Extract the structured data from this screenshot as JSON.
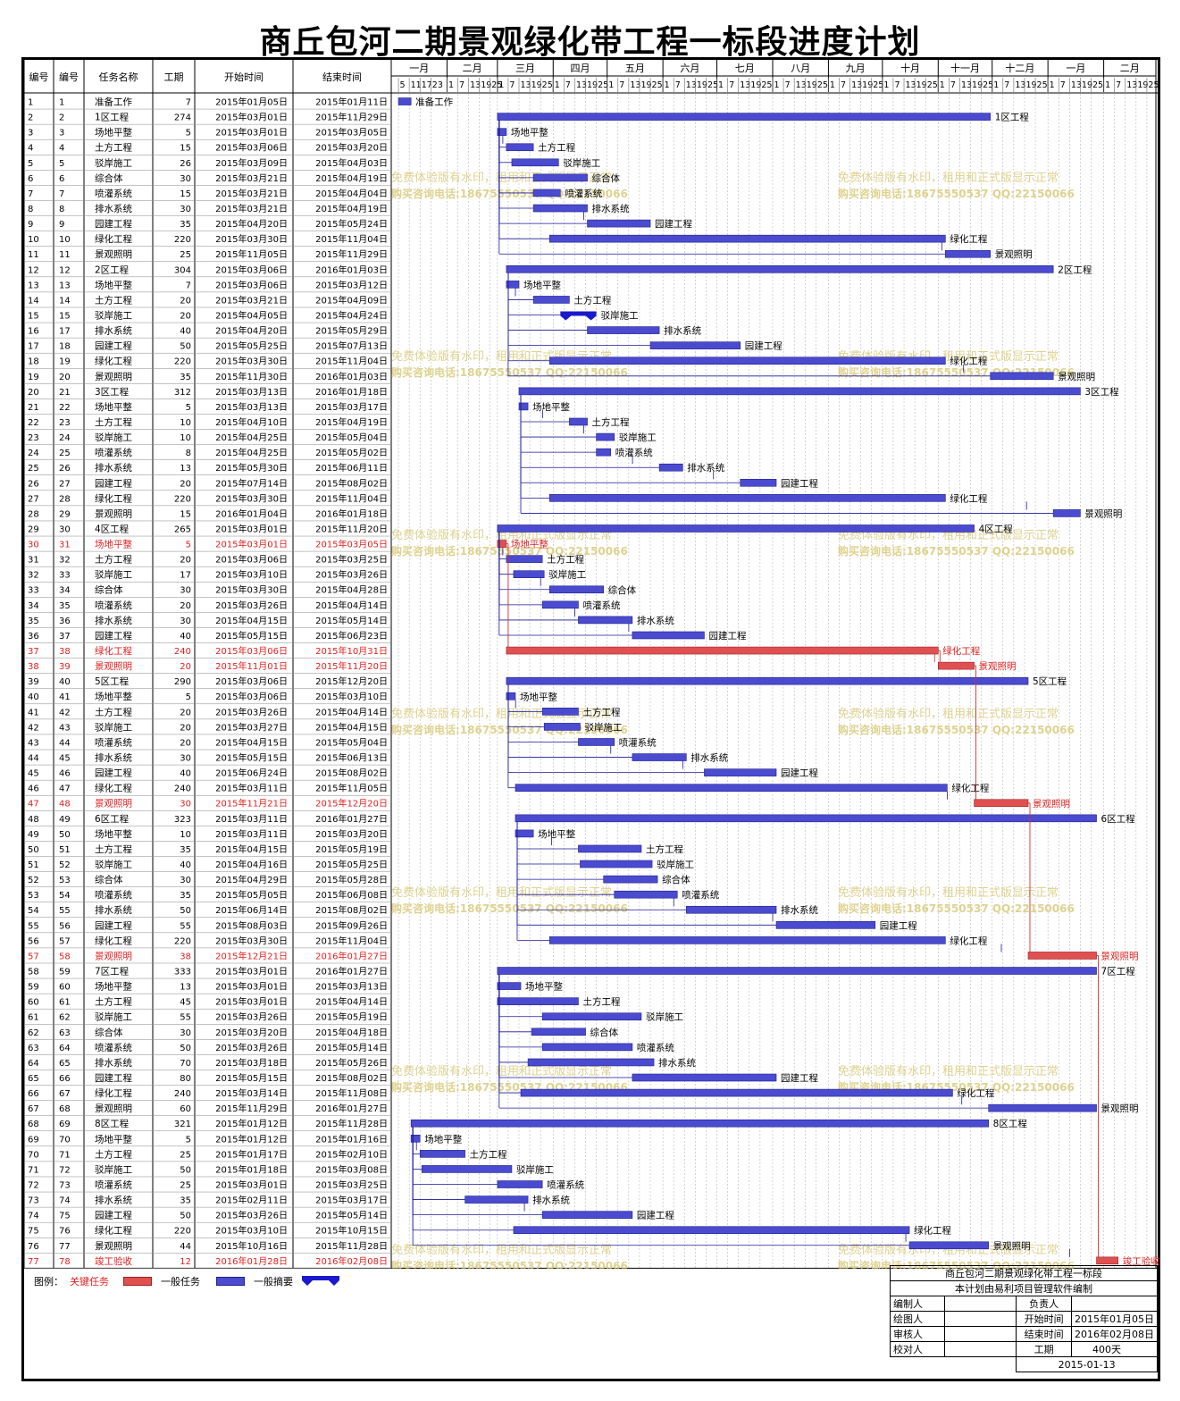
{
  "title": "商丘包河二期景观绿化带工程一标段进度计划",
  "columns": [
    "编号",
    "编号",
    "任务名称",
    "工期",
    "开始时间",
    "结束时间"
  ],
  "months": [
    "一月",
    "二月",
    "三月",
    "四月",
    "五月",
    "六月",
    "七月",
    "八月",
    "九月",
    "十月",
    "十一月",
    "十二月",
    "一月",
    "二月"
  ],
  "timeline": {
    "start": "2015-01-01",
    "end": "2016-02-29",
    "tick_days": [
      1,
      7,
      13,
      19,
      25
    ],
    "first_row_ticks": [
      5,
      11,
      17,
      23
    ]
  },
  "colors": {
    "normal": "#4b4bcf",
    "critical": "#e05050",
    "summary": "#1a1acc",
    "link": "#1a1a99",
    "critical_link": "#d03030"
  },
  "watermark": [
    "免费体验版有水印，租用和正式版显示正常",
    "购买咨询电话:18675550537 QQ:22150066"
  ],
  "tasks": [
    {
      "id": 1,
      "name": "准备工作",
      "dur": 7,
      "start": "2015-01-05",
      "end": "2015-01-11"
    },
    {
      "id": 2,
      "name": "1区工程",
      "dur": 274,
      "start": "2015-03-01",
      "end": "2015-11-29"
    },
    {
      "id": 3,
      "name": "场地平整",
      "dur": 5,
      "start": "2015-03-01",
      "end": "2015-03-05"
    },
    {
      "id": 4,
      "name": "土方工程",
      "dur": 15,
      "start": "2015-03-06",
      "end": "2015-03-20"
    },
    {
      "id": 5,
      "name": "驳岸施工",
      "dur": 26,
      "start": "2015-03-09",
      "end": "2015-04-03"
    },
    {
      "id": 6,
      "name": "综合体",
      "dur": 30,
      "start": "2015-03-21",
      "end": "2015-04-19"
    },
    {
      "id": 7,
      "name": "喷灌系统",
      "dur": 15,
      "start": "2015-03-21",
      "end": "2015-04-04"
    },
    {
      "id": 8,
      "name": "排水系统",
      "dur": 30,
      "start": "2015-03-21",
      "end": "2015-04-19"
    },
    {
      "id": 9,
      "name": "园建工程",
      "dur": 35,
      "start": "2015-04-20",
      "end": "2015-05-24"
    },
    {
      "id": 10,
      "name": "绿化工程",
      "dur": 220,
      "start": "2015-03-30",
      "end": "2015-11-04"
    },
    {
      "id": 11,
      "name": "景观照明",
      "dur": 25,
      "start": "2015-11-05",
      "end": "2015-11-29"
    },
    {
      "id": 12,
      "name": "2区工程",
      "dur": 304,
      "start": "2015-03-06",
      "end": "2016-01-03"
    },
    {
      "id": 13,
      "name": "场地平整",
      "dur": 7,
      "start": "2015-03-06",
      "end": "2015-03-12"
    },
    {
      "id": 14,
      "name": "土方工程",
      "dur": 20,
      "start": "2015-03-21",
      "end": "2015-04-09"
    },
    {
      "id": 15,
      "name": "驳岸施工",
      "dur": 20,
      "start": "2015-04-05",
      "end": "2015-04-24",
      "summary": true
    },
    {
      "id": 17,
      "name": "排水系统",
      "dur": 40,
      "start": "2015-04-20",
      "end": "2015-05-29"
    },
    {
      "id": 18,
      "name": "园建工程",
      "dur": 50,
      "start": "2015-05-25",
      "end": "2015-07-13"
    },
    {
      "id": 19,
      "name": "绿化工程",
      "dur": 220,
      "start": "2015-03-30",
      "end": "2015-11-04"
    },
    {
      "id": 20,
      "name": "景观照明",
      "dur": 35,
      "start": "2015-11-30",
      "end": "2016-01-03"
    },
    {
      "id": 21,
      "name": "3区工程",
      "dur": 312,
      "start": "2015-03-13",
      "end": "2016-01-18"
    },
    {
      "id": 22,
      "name": "场地平整",
      "dur": 5,
      "start": "2015-03-13",
      "end": "2015-03-17"
    },
    {
      "id": 23,
      "name": "土方工程",
      "dur": 10,
      "start": "2015-04-10",
      "end": "2015-04-19"
    },
    {
      "id": 24,
      "name": "驳岸施工",
      "dur": 10,
      "start": "2015-04-25",
      "end": "2015-05-04"
    },
    {
      "id": 25,
      "name": "喷灌系统",
      "dur": 8,
      "start": "2015-04-25",
      "end": "2015-05-02"
    },
    {
      "id": 26,
      "name": "排水系统",
      "dur": 13,
      "start": "2015-05-30",
      "end": "2015-06-11"
    },
    {
      "id": 27,
      "name": "园建工程",
      "dur": 20,
      "start": "2015-07-14",
      "end": "2015-08-02"
    },
    {
      "id": 28,
      "name": "绿化工程",
      "dur": 220,
      "start": "2015-03-30",
      "end": "2015-11-04"
    },
    {
      "id": 29,
      "name": "景观照明",
      "dur": 15,
      "start": "2016-01-04",
      "end": "2016-01-18"
    },
    {
      "id": 30,
      "name": "4区工程",
      "dur": 265,
      "start": "2015-03-01",
      "end": "2015-11-20"
    },
    {
      "id": 31,
      "name": "场地平整",
      "dur": 5,
      "start": "2015-03-01",
      "end": "2015-03-05",
      "critical": true
    },
    {
      "id": 32,
      "name": "土方工程",
      "dur": 20,
      "start": "2015-03-06",
      "end": "2015-03-25"
    },
    {
      "id": 33,
      "name": "驳岸施工",
      "dur": 17,
      "start": "2015-03-10",
      "end": "2015-03-26"
    },
    {
      "id": 34,
      "name": "综合体",
      "dur": 30,
      "start": "2015-03-30",
      "end": "2015-04-28"
    },
    {
      "id": 35,
      "name": "喷灌系统",
      "dur": 20,
      "start": "2015-03-26",
      "end": "2015-04-14"
    },
    {
      "id": 36,
      "name": "排水系统",
      "dur": 30,
      "start": "2015-04-15",
      "end": "2015-05-14"
    },
    {
      "id": 37,
      "name": "园建工程",
      "dur": 40,
      "start": "2015-05-15",
      "end": "2015-06-23"
    },
    {
      "id": 38,
      "name": "绿化工程",
      "dur": 240,
      "start": "2015-03-06",
      "end": "2015-10-31",
      "critical": true
    },
    {
      "id": 39,
      "name": "景观照明",
      "dur": 20,
      "start": "2015-11-01",
      "end": "2015-11-20",
      "critical": true
    },
    {
      "id": 40,
      "name": "5区工程",
      "dur": 290,
      "start": "2015-03-06",
      "end": "2015-12-20"
    },
    {
      "id": 41,
      "name": "场地平整",
      "dur": 5,
      "start": "2015-03-06",
      "end": "2015-03-10"
    },
    {
      "id": 42,
      "name": "土方工程",
      "dur": 20,
      "start": "2015-03-26",
      "end": "2015-04-14"
    },
    {
      "id": 43,
      "name": "驳岸施工",
      "dur": 20,
      "start": "2015-03-27",
      "end": "2015-04-15"
    },
    {
      "id": 44,
      "name": "喷灌系统",
      "dur": 20,
      "start": "2015-04-15",
      "end": "2015-05-04"
    },
    {
      "id": 45,
      "name": "排水系统",
      "dur": 30,
      "start": "2015-05-15",
      "end": "2015-06-13"
    },
    {
      "id": 46,
      "name": "园建工程",
      "dur": 40,
      "start": "2015-06-24",
      "end": "2015-08-02"
    },
    {
      "id": 47,
      "name": "绿化工程",
      "dur": 240,
      "start": "2015-03-11",
      "end": "2015-11-05"
    },
    {
      "id": 48,
      "name": "景观照明",
      "dur": 30,
      "start": "2015-11-21",
      "end": "2015-12-20",
      "critical": true
    },
    {
      "id": 49,
      "name": "6区工程",
      "dur": 323,
      "start": "2015-03-11",
      "end": "2016-01-27"
    },
    {
      "id": 50,
      "name": "场地平整",
      "dur": 10,
      "start": "2015-03-11",
      "end": "2015-03-20"
    },
    {
      "id": 51,
      "name": "土方工程",
      "dur": 35,
      "start": "2015-04-15",
      "end": "2015-05-19"
    },
    {
      "id": 52,
      "name": "驳岸施工",
      "dur": 40,
      "start": "2015-04-16",
      "end": "2015-05-25"
    },
    {
      "id": 53,
      "name": "综合体",
      "dur": 30,
      "start": "2015-04-29",
      "end": "2015-05-28"
    },
    {
      "id": 54,
      "name": "喷灌系统",
      "dur": 35,
      "start": "2015-05-05",
      "end": "2015-06-08"
    },
    {
      "id": 55,
      "name": "排水系统",
      "dur": 50,
      "start": "2015-06-14",
      "end": "2015-08-02"
    },
    {
      "id": 56,
      "name": "园建工程",
      "dur": 55,
      "start": "2015-08-03",
      "end": "2015-09-26"
    },
    {
      "id": 57,
      "name": "绿化工程",
      "dur": 220,
      "start": "2015-03-30",
      "end": "2015-11-04"
    },
    {
      "id": 58,
      "name": "景观照明",
      "dur": 38,
      "start": "2015-12-21",
      "end": "2016-01-27",
      "critical": true
    },
    {
      "id": 59,
      "name": "7区工程",
      "dur": 333,
      "start": "2015-03-01",
      "end": "2016-01-27"
    },
    {
      "id": 60,
      "name": "场地平整",
      "dur": 13,
      "start": "2015-03-01",
      "end": "2015-03-13"
    },
    {
      "id": 61,
      "name": "土方工程",
      "dur": 45,
      "start": "2015-03-01",
      "end": "2015-04-14"
    },
    {
      "id": 62,
      "name": "驳岸施工",
      "dur": 55,
      "start": "2015-03-26",
      "end": "2015-05-19"
    },
    {
      "id": 63,
      "name": "综合体",
      "dur": 30,
      "start": "2015-03-20",
      "end": "2015-04-18"
    },
    {
      "id": 64,
      "name": "喷灌系统",
      "dur": 50,
      "start": "2015-03-26",
      "end": "2015-05-14"
    },
    {
      "id": 65,
      "name": "排水系统",
      "dur": 70,
      "start": "2015-03-18",
      "end": "2015-05-26"
    },
    {
      "id": 66,
      "name": "园建工程",
      "dur": 80,
      "start": "2015-05-15",
      "end": "2015-08-02"
    },
    {
      "id": 67,
      "name": "绿化工程",
      "dur": 240,
      "start": "2015-03-14",
      "end": "2015-11-08"
    },
    {
      "id": 68,
      "name": "景观照明",
      "dur": 60,
      "start": "2015-11-29",
      "end": "2016-01-27"
    },
    {
      "id": 69,
      "name": "8区工程",
      "dur": 321,
      "start": "2015-01-12",
      "end": "2015-11-28"
    },
    {
      "id": 70,
      "name": "场地平整",
      "dur": 5,
      "start": "2015-01-12",
      "end": "2015-01-16"
    },
    {
      "id": 71,
      "name": "土方工程",
      "dur": 25,
      "start": "2015-01-17",
      "end": "2015-02-10"
    },
    {
      "id": 72,
      "name": "驳岸施工",
      "dur": 50,
      "start": "2015-01-18",
      "end": "2015-03-08"
    },
    {
      "id": 73,
      "name": "喷灌系统",
      "dur": 25,
      "start": "2015-03-01",
      "end": "2015-03-25"
    },
    {
      "id": 74,
      "name": "排水系统",
      "dur": 35,
      "start": "2015-02-11",
      "end": "2015-03-17"
    },
    {
      "id": 75,
      "name": "园建工程",
      "dur": 50,
      "start": "2015-03-26",
      "end": "2015-05-14"
    },
    {
      "id": 76,
      "name": "绿化工程",
      "dur": 220,
      "start": "2015-03-10",
      "end": "2015-10-15"
    },
    {
      "id": 77,
      "name": "景观照明",
      "dur": 44,
      "start": "2015-10-16",
      "end": "2015-11-28"
    },
    {
      "id": 78,
      "name": "竣工验收",
      "dur": 12,
      "start": "2016-01-28",
      "end": "2016-02-08",
      "critical": true
    }
  ],
  "legend": {
    "label": "图例：",
    "critical": "关键任务",
    "normal": "一般任务",
    "summary": "一般摘要"
  },
  "signoff": {
    "project": "商丘包河二期景观绿化带工程一标段",
    "software": "本计划由易利项目管理软件编制",
    "rows": [
      [
        "编制人",
        "",
        "负责人",
        ""
      ],
      [
        "绘图人",
        "",
        "开始时间",
        "2015年01月05日"
      ],
      [
        "审核人",
        "",
        "结束时间",
        "2016年02月08日"
      ],
      [
        "校对人",
        "",
        "工期",
        "400天"
      ]
    ],
    "date": "2015-01-13"
  }
}
